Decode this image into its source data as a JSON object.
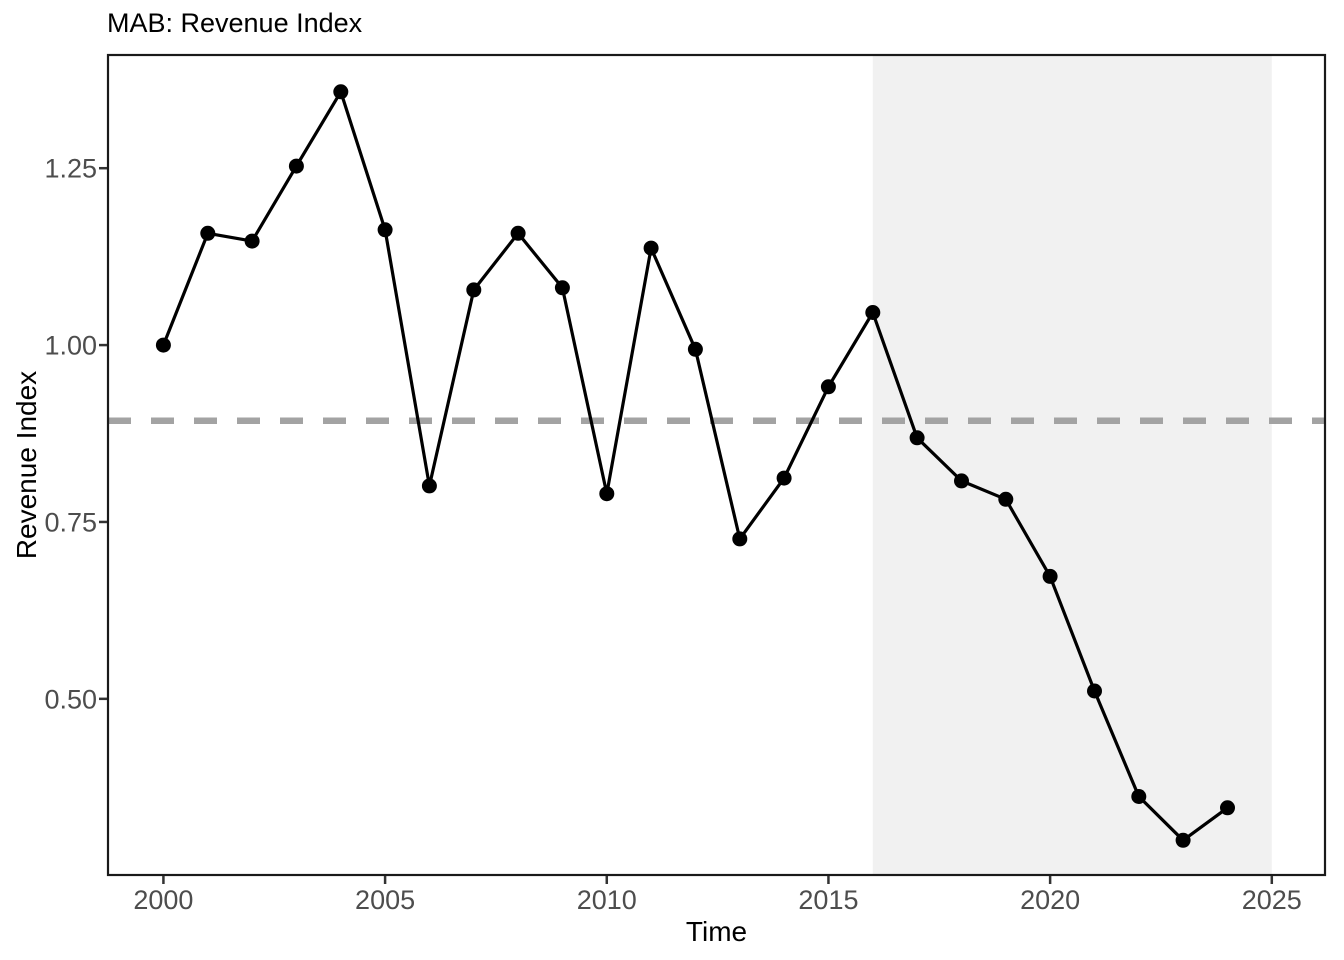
{
  "page": {
    "background_color": "#ffffff"
  },
  "chart_data": {
    "type": "line",
    "title": "MAB: Revenue Index",
    "xlabel": "Time",
    "ylabel": "Revenue Index",
    "x": [
      2000,
      2001,
      2002,
      2003,
      2004,
      2005,
      2006,
      2007,
      2008,
      2009,
      2010,
      2011,
      2012,
      2013,
      2014,
      2015,
      2016,
      2017,
      2018,
      2019,
      2020,
      2021,
      2022,
      2023,
      2024
    ],
    "series": [
      {
        "name": "Revenue Index",
        "values": [
          1.0,
          1.158,
          1.147,
          1.253,
          1.358,
          1.163,
          0.801,
          1.078,
          1.158,
          1.081,
          0.79,
          1.137,
          0.994,
          0.726,
          0.812,
          0.941,
          1.046,
          0.869,
          0.808,
          0.782,
          0.673,
          0.511,
          0.362,
          0.3,
          0.346
        ]
      }
    ],
    "reference_line": {
      "y": 0.893,
      "style": "dashed",
      "color": "#a3a3a3"
    },
    "shaded_region": {
      "x_start": 2016,
      "x_end": 2025,
      "color": "#f1f1f1"
    },
    "x_ticks": [
      2000,
      2005,
      2010,
      2015,
      2020,
      2025
    ],
    "x_tick_labels": [
      "2000",
      "2005",
      "2010",
      "2015",
      "2020",
      "2025"
    ],
    "y_ticks": [
      0.5,
      0.75,
      1.0,
      1.25
    ],
    "y_tick_labels": [
      "0.50",
      "0.75",
      "1.00",
      "1.25"
    ],
    "xlim": [
      1998.75,
      2026.2
    ],
    "ylim": [
      0.251,
      1.41
    ],
    "grid": false,
    "legend": "none",
    "styles": {
      "line_color": "#000000",
      "point_color": "#000000",
      "panel_border_color": "#1a1a1a",
      "tick_mark_color": "#333333",
      "tick_label_color": "#4d4d4d",
      "title_color": "#000000"
    }
  }
}
